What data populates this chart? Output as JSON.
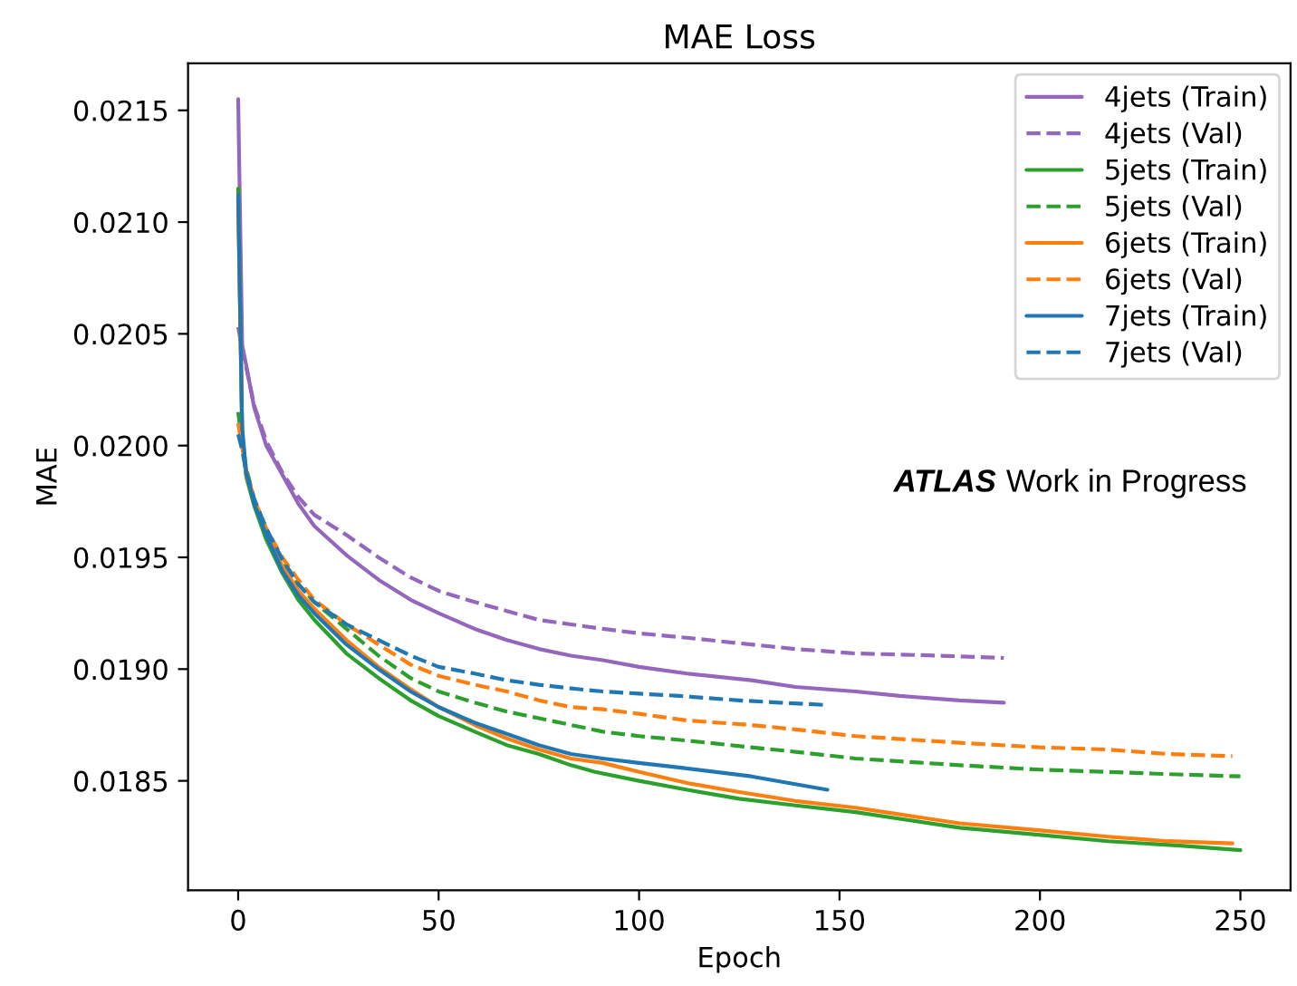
{
  "chart_data": {
    "type": "line",
    "title": "MAE Loss",
    "xlabel": "Epoch",
    "ylabel": "MAE",
    "xlim": [
      -12.5,
      262.5
    ],
    "xticks": [
      0,
      50,
      100,
      150,
      200,
      250
    ],
    "ylim": [
      0.01801,
      0.02171
    ],
    "yticks": [
      0.0185,
      {
        "value": 0.019,
        "label": "0.0190"
      },
      0.0195,
      {
        "value": 0.02,
        "label": "0.0200"
      },
      0.0205,
      {
        "value": 0.021,
        "label": "0.0210"
      },
      0.0215
    ],
    "legend": "top right",
    "marker": "none",
    "annotations": [
      "ATLAS",
      "Work in Progress"
    ],
    "series": [
      {
        "name": "4jets (Train)",
        "color": "#9467bd",
        "line_style": "solid",
        "x": [
          0,
          1,
          2,
          4,
          7,
          11,
          15,
          19,
          27,
          35,
          43,
          50,
          59,
          67,
          75,
          83,
          91,
          100,
          112,
          128,
          139,
          154,
          165,
          180,
          191
        ],
        "values": [
          0.02155,
          0.02045,
          0.02036,
          0.02017,
          0.02,
          0.01987,
          0.01974,
          0.01964,
          0.01951,
          0.0194,
          0.01931,
          0.01925,
          0.01918,
          0.01913,
          0.01909,
          0.01906,
          0.01904,
          0.01901,
          0.01898,
          0.01895,
          0.01892,
          0.0189,
          0.01888,
          0.01886,
          0.01885
        ]
      },
      {
        "name": "4jets (Val)",
        "color": "#9467bd",
        "line_style": "dashed",
        "x": [
          0,
          1,
          2,
          4,
          7,
          11,
          15,
          19,
          27,
          35,
          43,
          50,
          59,
          67,
          75,
          83,
          91,
          100,
          112,
          128,
          139,
          154,
          175,
          191
        ],
        "values": [
          0.02053,
          0.02043,
          0.02035,
          0.02018,
          0.02002,
          0.01988,
          0.01977,
          0.01969,
          0.0196,
          0.0195,
          0.01941,
          0.01935,
          0.0193,
          0.01926,
          0.01922,
          0.0192,
          0.01918,
          0.01916,
          0.01914,
          0.01911,
          0.01909,
          0.01907,
          0.01906,
          0.01905
        ]
      },
      {
        "name": "5jets (Train)",
        "color": "#2ca02c",
        "line_style": "solid",
        "x": [
          0,
          1,
          2,
          4,
          7,
          11,
          15,
          19,
          27,
          35,
          43,
          50,
          59,
          67,
          75,
          83,
          89,
          100,
          112,
          125,
          139,
          154,
          165,
          180,
          199,
          217,
          235,
          250
        ],
        "values": [
          0.02115,
          0.02004,
          0.01986,
          0.01973,
          0.01958,
          0.01943,
          0.01931,
          0.01922,
          0.01907,
          0.01896,
          0.01886,
          0.01879,
          0.01872,
          0.01866,
          0.01862,
          0.01857,
          0.01854,
          0.0185,
          0.01846,
          0.01842,
          0.01839,
          0.01836,
          0.01833,
          0.01829,
          0.01826,
          0.01823,
          0.01821,
          0.01819
        ]
      },
      {
        "name": "5jets (Val)",
        "color": "#2ca02c",
        "line_style": "dashed",
        "x": [
          0,
          1,
          2,
          4,
          7,
          11,
          15,
          19,
          27,
          35,
          43,
          50,
          59,
          67,
          75,
          83,
          91,
          100,
          112,
          128,
          139,
          154,
          180,
          200,
          217,
          232,
          250
        ],
        "values": [
          0.02015,
          0.02001,
          0.0199,
          0.01976,
          0.01962,
          0.01949,
          0.01938,
          0.0193,
          0.01918,
          0.01906,
          0.01896,
          0.0189,
          0.01885,
          0.01881,
          0.01878,
          0.01875,
          0.01872,
          0.0187,
          0.01868,
          0.01865,
          0.01863,
          0.0186,
          0.01857,
          0.01855,
          0.01854,
          0.01853,
          0.01852
        ]
      },
      {
        "name": "6jets (Train)",
        "color": "#ff7f0e",
        "line_style": "solid",
        "x": [
          0,
          1,
          2,
          4,
          7,
          11,
          15,
          19,
          27,
          35,
          43,
          50,
          59,
          67,
          75,
          83,
          91,
          100,
          112,
          125,
          139,
          154,
          165,
          180,
          199,
          217,
          232,
          248
        ],
        "values": [
          0.0211,
          0.02006,
          0.01987,
          0.01975,
          0.01961,
          0.01946,
          0.01935,
          0.01927,
          0.01913,
          0.01901,
          0.01891,
          0.01883,
          0.01875,
          0.01869,
          0.01864,
          0.0186,
          0.01858,
          0.01854,
          0.01849,
          0.01845,
          0.01841,
          0.01838,
          0.01835,
          0.01831,
          0.01828,
          0.01825,
          0.01823,
          0.01822
        ]
      },
      {
        "name": "6jets (Val)",
        "color": "#ff7f0e",
        "line_style": "dashed",
        "x": [
          0,
          1,
          2,
          4,
          7,
          11,
          15,
          19,
          27,
          35,
          43,
          50,
          59,
          67,
          75,
          83,
          91,
          100,
          112,
          128,
          139,
          154,
          180,
          200,
          217,
          232,
          248
        ],
        "values": [
          0.0201,
          0.01999,
          0.01989,
          0.01976,
          0.01963,
          0.0195,
          0.0194,
          0.01931,
          0.0192,
          0.01911,
          0.01902,
          0.01897,
          0.01893,
          0.0189,
          0.01886,
          0.01883,
          0.01882,
          0.0188,
          0.01877,
          0.01875,
          0.01873,
          0.0187,
          0.01867,
          0.01865,
          0.01864,
          0.01862,
          0.01861
        ]
      },
      {
        "name": "7jets (Train)",
        "color": "#1f77b4",
        "line_style": "solid",
        "x": [
          0,
          1,
          2,
          4,
          7,
          11,
          15,
          19,
          27,
          35,
          43,
          50,
          59,
          67,
          75,
          83,
          91,
          100,
          110,
          128,
          147
        ],
        "values": [
          0.02112,
          0.02008,
          0.01988,
          0.01974,
          0.0196,
          0.01944,
          0.01933,
          0.01925,
          0.01911,
          0.019,
          0.0189,
          0.01883,
          0.01876,
          0.01871,
          0.01866,
          0.01862,
          0.0186,
          0.01858,
          0.01856,
          0.01852,
          0.01846
        ]
      },
      {
        "name": "7jets (Val)",
        "color": "#1f77b4",
        "line_style": "dashed",
        "x": [
          0,
          1,
          2,
          4,
          7,
          11,
          15,
          19,
          27,
          35,
          43,
          50,
          59,
          67,
          75,
          85,
          91,
          100,
          110,
          125,
          135,
          146
        ],
        "values": [
          0.02005,
          0.01998,
          0.01988,
          0.01976,
          0.01963,
          0.01949,
          0.01938,
          0.0193,
          0.0192,
          0.01913,
          0.01906,
          0.01901,
          0.01898,
          0.01895,
          0.01893,
          0.01891,
          0.0189,
          0.01889,
          0.01888,
          0.01886,
          0.01885,
          0.01884
        ]
      }
    ]
  }
}
